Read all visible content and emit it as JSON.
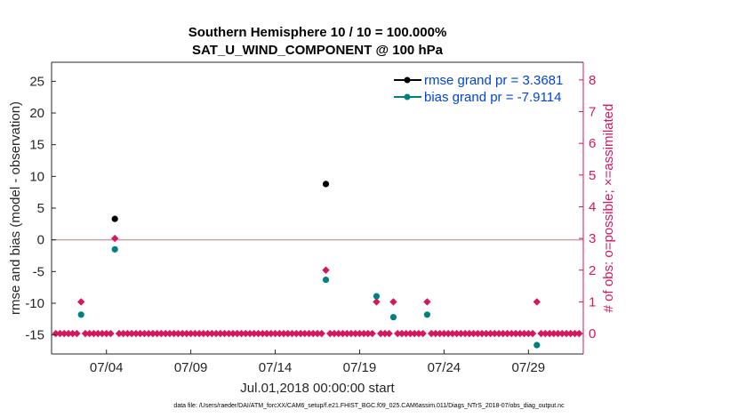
{
  "chart_data": {
    "type": "scatter",
    "title_line1": "Southern Hemisphere 10 / 10 = 100.000%",
    "title_line2": "SAT_U_WIND_COMPONENT @ 100 hPa",
    "xlabel": "Jul.01,2018 00:00:00 start",
    "ylabel_left": "rmse and bias (model - observation)",
    "ylabel_right": "# of obs: o=possible; ×=assimilated",
    "xlim": [
      0.75,
      32.25
    ],
    "ylim_left": [
      -18,
      28
    ],
    "ylim_right": [
      -0.6438,
      8.5577
    ],
    "x_ticks": [
      4,
      9,
      14,
      19,
      24,
      29
    ],
    "x_tick_labels": [
      "07/04",
      "07/09",
      "07/14",
      "07/19",
      "07/24",
      "07/29"
    ],
    "y_left_ticks": [
      -15,
      -10,
      -5,
      0,
      5,
      10,
      15,
      20,
      25
    ],
    "y_right_ticks": [
      0,
      1,
      2,
      3,
      4,
      5,
      6,
      7,
      8
    ],
    "grid": false,
    "legend_position": "top-right",
    "zero_line": 0,
    "colors": {
      "rmse": "#000000",
      "bias": "#008080",
      "obs": "#d6165e",
      "legend_text": "#0044dd",
      "zero_line": "#c0a5a5"
    },
    "series": [
      {
        "name": "rmse grand pr = 3.3681",
        "axis": "left",
        "marker": "circle",
        "points": [
          [
            2.5,
            -11.8
          ],
          [
            4.5,
            3.3
          ],
          [
            17.0,
            8.8
          ],
          [
            20.0,
            -8.9
          ],
          [
            21.0,
            -12.2
          ],
          [
            23.0,
            -11.8
          ],
          [
            29.5,
            -16.6
          ]
        ]
      },
      {
        "name": "bias grand pr = -7.9114",
        "axis": "left",
        "marker": "circle",
        "points": [
          [
            2.5,
            -11.8
          ],
          [
            4.5,
            -1.5
          ],
          [
            17.0,
            -6.3
          ],
          [
            20.0,
            -8.9
          ],
          [
            21.0,
            -12.2
          ],
          [
            23.0,
            -11.8
          ],
          [
            29.5,
            -16.6
          ]
        ]
      },
      {
        "name": "obs_count",
        "axis": "right",
        "marker": "diamond",
        "highlight_points": [
          [
            2.5,
            1
          ],
          [
            4.5,
            3
          ],
          [
            17.0,
            2
          ],
          [
            20.0,
            1
          ],
          [
            21.0,
            1
          ],
          [
            23.0,
            1
          ],
          [
            29.5,
            1
          ]
        ],
        "baseline_value": 0,
        "baseline_x": [
          1.0,
          1.25,
          1.5,
          1.75,
          2.0,
          2.25,
          2.75,
          3.0,
          3.25,
          3.5,
          3.75,
          4.0,
          4.25,
          4.75,
          5.0,
          5.25,
          5.5,
          5.75,
          6.0,
          6.25,
          6.5,
          6.75,
          7.0,
          7.25,
          7.5,
          7.75,
          8.0,
          8.25,
          8.5,
          8.75,
          9.0,
          9.25,
          9.5,
          9.75,
          10.0,
          10.25,
          10.5,
          10.75,
          11.0,
          11.25,
          11.5,
          11.75,
          12.0,
          12.25,
          12.5,
          12.75,
          13.0,
          13.25,
          13.5,
          13.75,
          14.0,
          14.25,
          14.5,
          14.75,
          15.0,
          15.25,
          15.5,
          15.75,
          16.0,
          16.25,
          16.5,
          16.75,
          17.25,
          17.5,
          17.75,
          18.0,
          18.25,
          18.5,
          18.75,
          19.0,
          19.25,
          19.5,
          19.75,
          20.25,
          20.5,
          20.75,
          21.25,
          21.5,
          21.75,
          22.0,
          22.25,
          22.5,
          22.75,
          23.25,
          23.5,
          23.75,
          24.0,
          24.25,
          24.5,
          24.75,
          25.0,
          25.25,
          25.5,
          25.75,
          26.0,
          26.25,
          26.5,
          26.75,
          27.0,
          27.25,
          27.5,
          27.75,
          28.0,
          28.25,
          28.5,
          28.75,
          29.0,
          29.25,
          29.75,
          30.0,
          30.25,
          30.5,
          30.75,
          31.0,
          31.25,
          31.5,
          31.75,
          32.0
        ]
      }
    ]
  },
  "footnote": "data file: /Users/raeder/DAI/ATM_forcXX/CAM6_setup/f.e21.FHIST_BGC.f09_025.CAM6assim.011/Diags_NTrS_2018-07/obs_diag_output.nc"
}
